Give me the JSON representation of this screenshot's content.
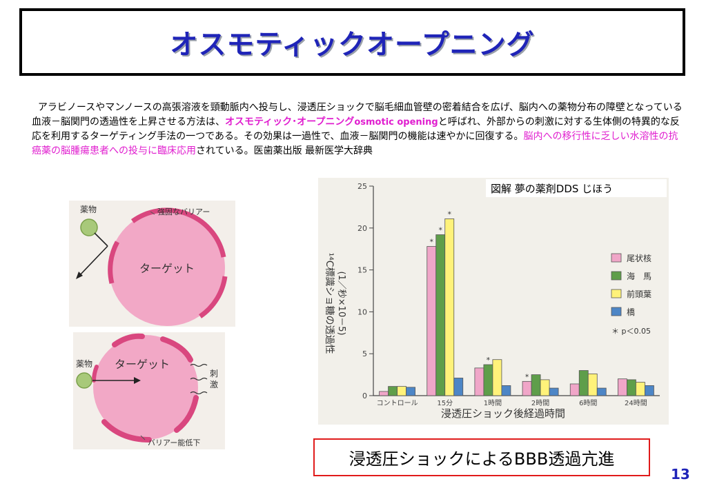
{
  "title": "オスモティックオープニング",
  "paragraph": {
    "part1": "アラビノースやマンノースの高張溶液を頸動脈内へ投与し、浸透圧ショックで脳毛細血管壁の密着結合を広げ、脳内への薬物分布の障壁となっている血液－脳関門の透過性を上昇させる方法は、",
    "highlight1": "オスモティック･オープニング",
    "highlight1_en": "osmotic opening",
    "part2": "と呼ばれ、外部からの刺激に対する生体側の特異的な反応を利用するターゲティング手法の一つである。その効果は一過性で、血液－脳関門の機能は速やかに回復する。",
    "highlight2": "脳内への移行性に乏しい水溶性の抗癌薬の脳腫瘍患者への投与に臨床応用",
    "part3": "されている。医歯薬出版 最新医学大辞典"
  },
  "diagram_top": {
    "drug_label": "薬物",
    "barrier_label": "強固なバリアー",
    "target_label": "ターゲット"
  },
  "diagram_bottom": {
    "drug_label": "薬物",
    "target_label": "ターゲット",
    "stimulus_label_1": "刺",
    "stimulus_label_2": "激",
    "barrier_label": "バリアー能低下"
  },
  "source_label": "図解 夢の薬剤DDS じほう",
  "caption": "浸透圧ショックによるBBB透過亢進",
  "page_number": "13",
  "chart_data": {
    "type": "bar",
    "categories": [
      "コントロール",
      "15分",
      "1時間",
      "2時間",
      "6時間",
      "24時間"
    ],
    "series": [
      {
        "name": "尾状核",
        "values": [
          0.5,
          17.8,
          3.3,
          1.7,
          1.4,
          2.0
        ],
        "color": "#f0a6c8"
      },
      {
        "name": "海　馬",
        "values": [
          1.1,
          19.2,
          3.7,
          2.5,
          3.0,
          1.9
        ],
        "color": "#5f9e4a"
      },
      {
        "name": "前頭葉",
        "values": [
          1.1,
          21.1,
          4.3,
          1.9,
          2.6,
          1.6
        ],
        "color": "#fff27a"
      },
      {
        "name": "橋",
        "values": [
          1.0,
          2.1,
          1.2,
          0.9,
          0.9,
          1.2
        ],
        "color": "#4d86c6"
      }
    ],
    "significant": [
      [
        1,
        0
      ],
      [
        1,
        1
      ],
      [
        1,
        2
      ],
      [
        2,
        1
      ],
      [
        3,
        0
      ]
    ],
    "yticks": [
      "0",
      "5",
      "10",
      "15",
      "20",
      "25"
    ],
    "ylim": [
      0,
      25
    ],
    "ylabel": "¹⁴C標識ショ糖の透過性",
    "ylabel_unit": "(1／秒×10－5)",
    "xlabel": "浸透圧ショック後経過時間",
    "legend_note": "＊ p＜0.05",
    "significance_mark": "*"
  }
}
